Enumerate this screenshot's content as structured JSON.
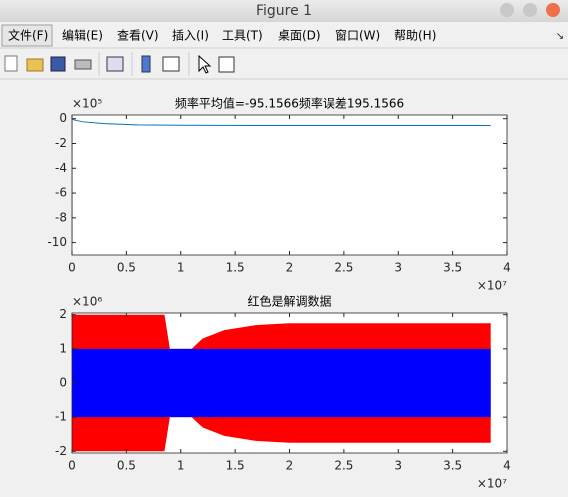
{
  "window": {
    "title": "Figure 1"
  },
  "menu": [
    "文件(F)",
    "编辑(E)",
    "查看(V)",
    "插入(I)",
    "工具(T)",
    "桌面(D)",
    "窗口(W)",
    "帮助(H)"
  ],
  "chart_data": [
    {
      "type": "line",
      "title": "频率平均值=-95.1566频率误差195.1566",
      "y_exponent_label": "×10⁵",
      "x_exponent_label": "×10⁷",
      "xlim": [
        0,
        4
      ],
      "xticks": [
        0,
        0.5,
        1,
        1.5,
        2,
        2.5,
        3,
        3.5,
        4
      ],
      "ylim": [
        -11,
        0.3
      ],
      "yticks": [
        0,
        -2,
        -4,
        -6,
        -8,
        -10
      ],
      "series": [
        {
          "color": "#0072bd",
          "x": [
            0,
            0,
            0.02,
            0.1,
            0.3,
            0.6,
            1,
            2,
            3,
            3.85
          ],
          "values": [
            -10,
            0,
            -0.1,
            -0.25,
            -0.4,
            -0.5,
            -0.53,
            -0.55,
            -0.55,
            -0.55
          ]
        }
      ]
    },
    {
      "type": "area",
      "title": "红色是解调数据",
      "y_exponent_label": "×10⁶",
      "x_exponent_label": "×10⁷",
      "xlim": [
        0,
        4
      ],
      "xticks": [
        0,
        0.5,
        1,
        1.5,
        2,
        2.5,
        3,
        3.5,
        4
      ],
      "ylim": [
        -2.05,
        2.05
      ],
      "yticks": [
        2,
        1,
        0,
        -1,
        -2
      ],
      "series": [
        {
          "color": "#ff0000",
          "x": [
            0,
            0.85,
            0.9,
            1.1,
            1.2,
            1.4,
            1.7,
            2.0,
            3.85
          ],
          "values": [
            2,
            2,
            1,
            1,
            1.3,
            1.55,
            1.7,
            1.75,
            1.75
          ],
          "lower": [
            -2,
            -2,
            -1,
            -1,
            -1.3,
            -1.55,
            -1.7,
            -1.75,
            -1.75
          ]
        },
        {
          "color": "#0000ff",
          "x": [
            0,
            3.85
          ],
          "values": [
            1,
            1
          ],
          "lower": [
            -1,
            -1
          ]
        }
      ]
    }
  ]
}
